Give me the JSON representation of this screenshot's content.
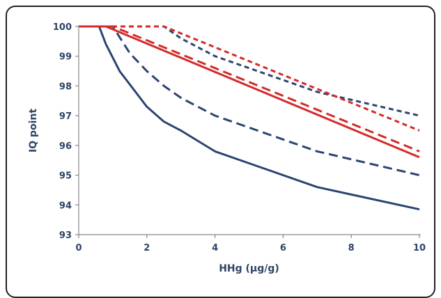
{
  "chart_data": {
    "type": "line",
    "xlabel": "HHg (µg/g)",
    "ylabel": "IQ point",
    "xlim": [
      0,
      10
    ],
    "ylim": [
      93,
      100
    ],
    "xticks": [
      "0",
      "2",
      "4",
      "6",
      "8",
      "10"
    ],
    "yticks": [
      "93",
      "94",
      "95",
      "96",
      "97",
      "98",
      "99",
      "100"
    ],
    "grid": false,
    "legend": "none",
    "series": [
      {
        "color": "#2b4570",
        "style": "solid",
        "x": [
          0,
          0.6,
          0.8,
          1.2,
          2,
          2.5,
          3,
          4,
          5,
          7,
          10
        ],
        "y": [
          100,
          100,
          99.4,
          98.5,
          97.3,
          96.8,
          96.5,
          95.8,
          95.4,
          94.6,
          93.85
        ]
      },
      {
        "color": "#2b4570",
        "style": "dashed",
        "x": [
          0,
          1.0,
          1.5,
          2,
          2.5,
          3,
          4,
          5,
          7,
          10
        ],
        "y": [
          100,
          100,
          99.1,
          98.5,
          98.0,
          97.6,
          97.0,
          96.6,
          95.8,
          95.0
        ]
      },
      {
        "color": "#d42a2a",
        "style": "solid",
        "x": [
          0,
          0.8,
          10
        ],
        "y": [
          100,
          100,
          95.6
        ]
      },
      {
        "color": "#d42a2a",
        "style": "dashed",
        "x": [
          0,
          1.0,
          10
        ],
        "y": [
          100,
          100,
          95.8
        ]
      },
      {
        "color": "#2b4570",
        "style": "dotted",
        "x": [
          0,
          2.5,
          3,
          4,
          5,
          7,
          10
        ],
        "y": [
          100,
          100,
          99.6,
          99.0,
          98.6,
          97.8,
          97.0
        ]
      },
      {
        "color": "#d42a2a",
        "style": "dotted",
        "x": [
          0,
          2.5,
          10
        ],
        "y": [
          100,
          100,
          96.5
        ]
      }
    ]
  }
}
